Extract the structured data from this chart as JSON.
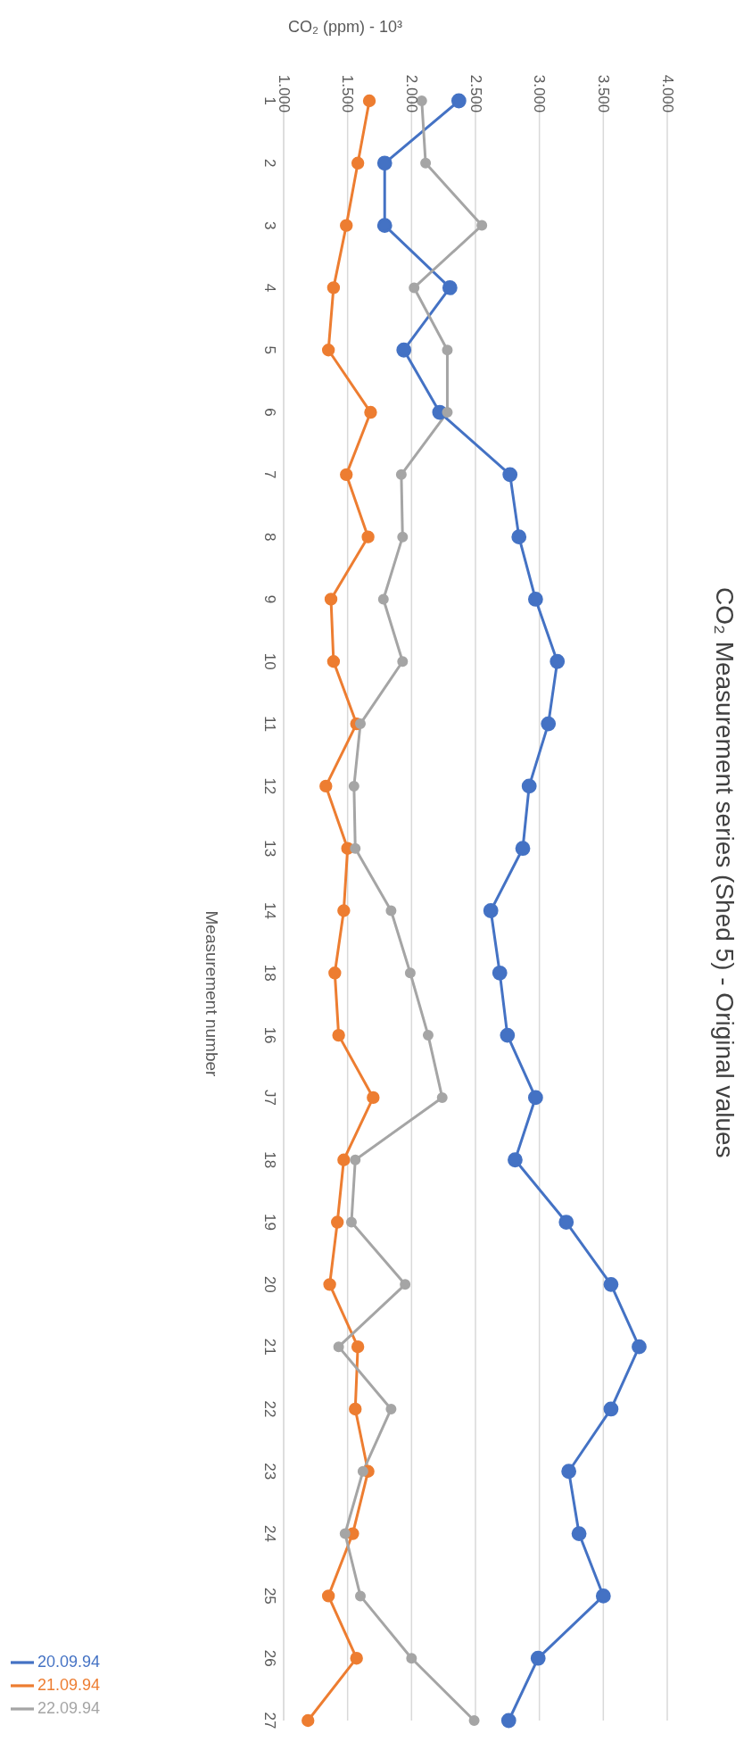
{
  "chart_data": {
    "type": "line",
    "title": "CO₂ Measurement series  (Shed 5) - Original values",
    "orientation": "horizontal",
    "xlabel": "CO₂ (ppm) - 10³",
    "ylabel": "Measurement number",
    "categories": [
      "1",
      "2",
      "3",
      "4",
      "5",
      "6",
      "7",
      "8",
      "9",
      "10",
      "11",
      "12",
      "13",
      "14",
      "18",
      "16",
      "J7",
      "18",
      "19",
      "20",
      "21",
      "22",
      "23",
      "24",
      "25",
      "26",
      "27"
    ],
    "series": [
      {
        "name": "20.09.94",
        "color": "#4472c4",
        "values": [
          2.37,
          1.79,
          1.79,
          2.3,
          1.94,
          2.22,
          2.77,
          2.84,
          2.97,
          3.14,
          3.07,
          2.92,
          2.87,
          2.62,
          2.69,
          2.75,
          2.97,
          2.81,
          3.21,
          3.56,
          3.78,
          3.56,
          3.23,
          3.31,
          3.5,
          2.99,
          2.76
        ]
      },
      {
        "name": "21.09.94",
        "color": "#ed7d31",
        "values": [
          1.67,
          1.58,
          1.49,
          1.39,
          1.35,
          1.68,
          1.49,
          1.66,
          1.37,
          1.39,
          1.57,
          1.33,
          1.5,
          1.47,
          1.4,
          1.43,
          1.7,
          1.47,
          1.42,
          1.36,
          1.58,
          1.56,
          1.66,
          1.54,
          1.35,
          1.57,
          1.19
        ]
      },
      {
        "name": "22.09.94",
        "color": "#a5a5a5",
        "values": [
          2.08,
          2.11,
          2.55,
          2.02,
          2.28,
          2.28,
          1.92,
          1.93,
          1.78,
          1.93,
          1.6,
          1.55,
          1.56,
          1.84,
          1.99,
          2.13,
          2.24,
          1.56,
          1.53,
          1.95,
          1.43,
          1.84,
          1.62,
          1.48,
          1.6,
          2.0,
          2.49
        ]
      }
    ],
    "xlim": [
      1,
      4
    ],
    "xticks": [
      {
        "value": 1,
        "label": "1.000"
      },
      {
        "value": 1.5,
        "label": "1.500"
      },
      {
        "value": 2,
        "label": "2.000"
      },
      {
        "value": 2.5,
        "label": "2.500"
      },
      {
        "value": 3,
        "label": "3.000"
      },
      {
        "value": 3.5,
        "label": "3.500"
      },
      {
        "value": 4,
        "label": "4.000"
      }
    ],
    "grid": "x",
    "legend": "bottom",
    "marker": "circle",
    "line_style": "solid"
  }
}
